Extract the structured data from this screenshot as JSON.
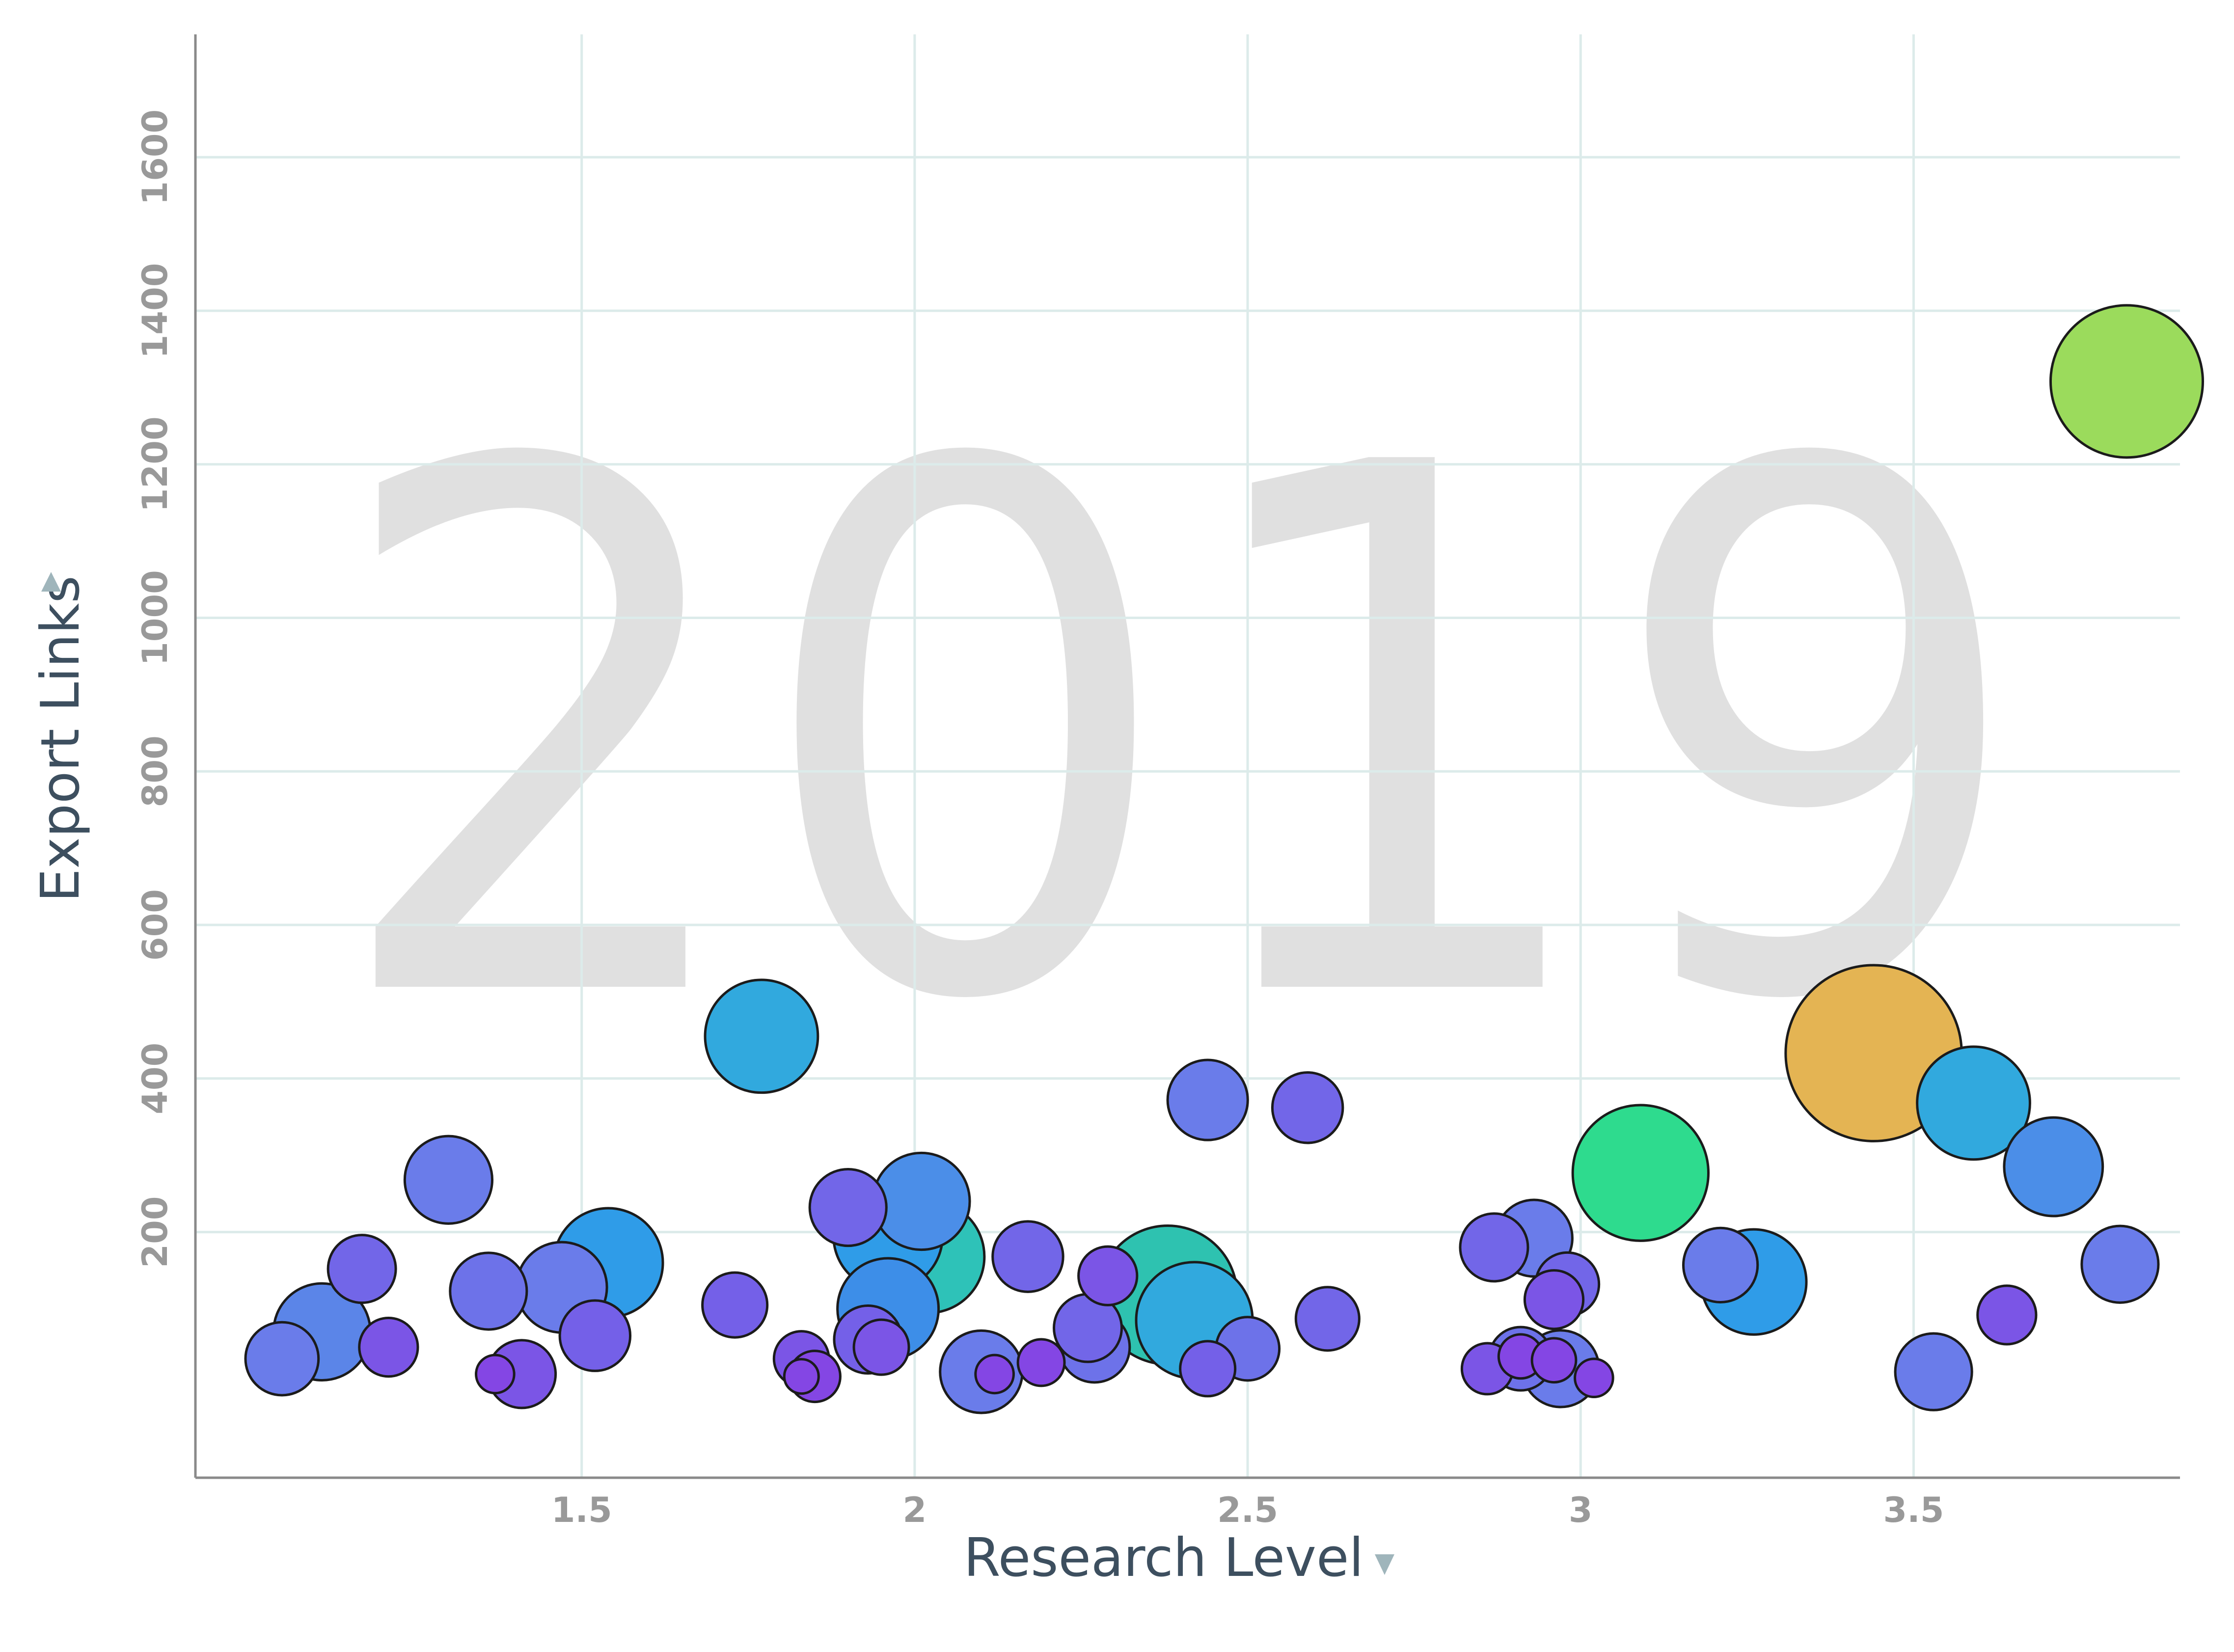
{
  "chart_data": {
    "type": "scatter",
    "variant": "bubble",
    "watermark": "2019",
    "xlabel": "Research Level",
    "ylabel": "Export Links",
    "xlim": [
      0.92,
      3.9
    ],
    "ylim": [
      -120,
      1760
    ],
    "x_ticks": [
      1.5,
      2,
      2.5,
      3,
      3.5
    ],
    "x_tick_labels": [
      "1.5",
      "2",
      "2.5",
      "3",
      "3.5"
    ],
    "y_ticks": [
      200,
      400,
      600,
      800,
      1000,
      1200,
      1400,
      1600
    ],
    "y_tick_labels": [
      "200",
      "400",
      "600",
      "800",
      "1000",
      "1200",
      "1400",
      "1600"
    ],
    "grid": true,
    "colors": {
      "watermark": "#e0e0e0",
      "tick_labels": "#999999",
      "axis_title": "#3d4f5f",
      "grid": "#dcebea"
    },
    "points": [
      {
        "x": 1.05,
        "y": 35,
        "size": 2.2,
        "color": "#6a7cea"
      },
      {
        "x": 1.11,
        "y": 70,
        "size": 4.5,
        "color": "#5b85e8"
      },
      {
        "x": 1.17,
        "y": 152,
        "size": 1.8,
        "color": "#7266e8"
      },
      {
        "x": 1.21,
        "y": 50,
        "size": 1.2,
        "color": "#7b55e6"
      },
      {
        "x": 1.3,
        "y": 268,
        "size": 3.5,
        "color": "#6a7cea"
      },
      {
        "x": 1.36,
        "y": 123,
        "size": 2.5,
        "color": "#6d72e9"
      },
      {
        "x": 1.37,
        "y": 15,
        "size": 0.3,
        "color": "#8446e4"
      },
      {
        "x": 1.41,
        "y": 15,
        "size": 1.8,
        "color": "#7b55e6"
      },
      {
        "x": 1.47,
        "y": 128,
        "size": 3.8,
        "color": "#6a7cea"
      },
      {
        "x": 1.52,
        "y": 65,
        "size": 2.0,
        "color": "#7460e8"
      },
      {
        "x": 1.54,
        "y": 160,
        "size": 6.0,
        "color": "#2f9ce8"
      },
      {
        "x": 1.73,
        "y": 105,
        "size": 1.6,
        "color": "#7460e8"
      },
      {
        "x": 1.77,
        "y": 455,
        "size": 6.5,
        "color": "#31a9de"
      },
      {
        "x": 1.83,
        "y": 35,
        "size": 1.0,
        "color": "#7b55e6"
      },
      {
        "x": 1.83,
        "y": 12,
        "size": 0.2,
        "color": "#8446e4"
      },
      {
        "x": 1.85,
        "y": 12,
        "size": 0.8,
        "color": "#8446e4"
      },
      {
        "x": 1.9,
        "y": 232,
        "size": 2.5,
        "color": "#7266e8"
      },
      {
        "x": 1.93,
        "y": 60,
        "size": 1.8,
        "color": "#7460e8"
      },
      {
        "x": 1.95,
        "y": 50,
        "size": 1.0,
        "color": "#7b55e6"
      },
      {
        "x": 1.96,
        "y": 195,
        "size": 6.0,
        "color": "#2f9ce8"
      },
      {
        "x": 1.96,
        "y": 100,
        "size": 5.0,
        "color": "#3d8ee8"
      },
      {
        "x": 2.02,
        "y": 168,
        "size": 6.5,
        "color": "#2ec2b8"
      },
      {
        "x": 2.01,
        "y": 240,
        "size": 4.5,
        "color": "#4b8ee8"
      },
      {
        "x": 2.1,
        "y": 18,
        "size": 3.0,
        "color": "#6a7cea"
      },
      {
        "x": 2.12,
        "y": 15,
        "size": 0.3,
        "color": "#8446e4"
      },
      {
        "x": 2.17,
        "y": 168,
        "size": 2.0,
        "color": "#7266e8"
      },
      {
        "x": 2.19,
        "y": 30,
        "size": 0.6,
        "color": "#8446e4"
      },
      {
        "x": 2.26,
        "y": 75,
        "size": 1.8,
        "color": "#7266e8"
      },
      {
        "x": 2.27,
        "y": 50,
        "size": 2.0,
        "color": "#6d72e9"
      },
      {
        "x": 2.29,
        "y": 143,
        "size": 1.2,
        "color": "#7b55e6"
      },
      {
        "x": 2.38,
        "y": 118,
        "size": 10.5,
        "color": "#2ec2b0"
      },
      {
        "x": 2.42,
        "y": 85,
        "size": 7.0,
        "color": "#31a9de"
      },
      {
        "x": 2.44,
        "y": 372,
        "size": 2.8,
        "color": "#6a7cea"
      },
      {
        "x": 2.44,
        "y": 22,
        "size": 1.0,
        "color": "#7460e8"
      },
      {
        "x": 2.5,
        "y": 48,
        "size": 1.5,
        "color": "#6d72e9"
      },
      {
        "x": 2.59,
        "y": 362,
        "size": 2.0,
        "color": "#7266e8"
      },
      {
        "x": 2.62,
        "y": 87,
        "size": 1.5,
        "color": "#7266e8"
      },
      {
        "x": 2.86,
        "y": 22,
        "size": 0.8,
        "color": "#7b55e6"
      },
      {
        "x": 2.87,
        "y": 180,
        "size": 1.8,
        "color": "#7266e8"
      },
      {
        "x": 2.91,
        "y": 35,
        "size": 1.5,
        "color": "#6d72e9"
      },
      {
        "x": 2.91,
        "y": 38,
        "size": 0.5,
        "color": "#8446e4"
      },
      {
        "x": 2.93,
        "y": 192,
        "size": 2.5,
        "color": "#6a7cea"
      },
      {
        "x": 2.96,
        "y": 33,
        "size": 0.5,
        "color": "#8446e4"
      },
      {
        "x": 2.97,
        "y": 22,
        "size": 2.5,
        "color": "#6a7cea"
      },
      {
        "x": 2.98,
        "y": 132,
        "size": 1.5,
        "color": "#7266e8"
      },
      {
        "x": 2.96,
        "y": 112,
        "size": 1.2,
        "color": "#7b55e6"
      },
      {
        "x": 3.02,
        "y": 10,
        "size": 0.3,
        "color": "#8446e4"
      },
      {
        "x": 3.09,
        "y": 277,
        "size": 10.0,
        "color": "#2edb8e"
      },
      {
        "x": 3.21,
        "y": 157,
        "size": 2.3,
        "color": "#6a7cea"
      },
      {
        "x": 3.26,
        "y": 135,
        "size": 5.5,
        "color": "#2f9ce8"
      },
      {
        "x": 3.44,
        "y": 433,
        "size": 18.0,
        "color": "#e4b453"
      },
      {
        "x": 3.53,
        "y": 18,
        "size": 2.5,
        "color": "#6a7cea"
      },
      {
        "x": 3.59,
        "y": 368,
        "size": 6.5,
        "color": "#31a9de"
      },
      {
        "x": 3.64,
        "y": 92,
        "size": 1.2,
        "color": "#7b55e6"
      },
      {
        "x": 3.71,
        "y": 285,
        "size": 4.7,
        "color": "#4b8ee8"
      },
      {
        "x": 3.81,
        "y": 158,
        "size": 2.5,
        "color": "#6a7cea"
      },
      {
        "x": 3.82,
        "y": 1308,
        "size": 13.0,
        "color": "#9bdb5c"
      }
    ]
  }
}
